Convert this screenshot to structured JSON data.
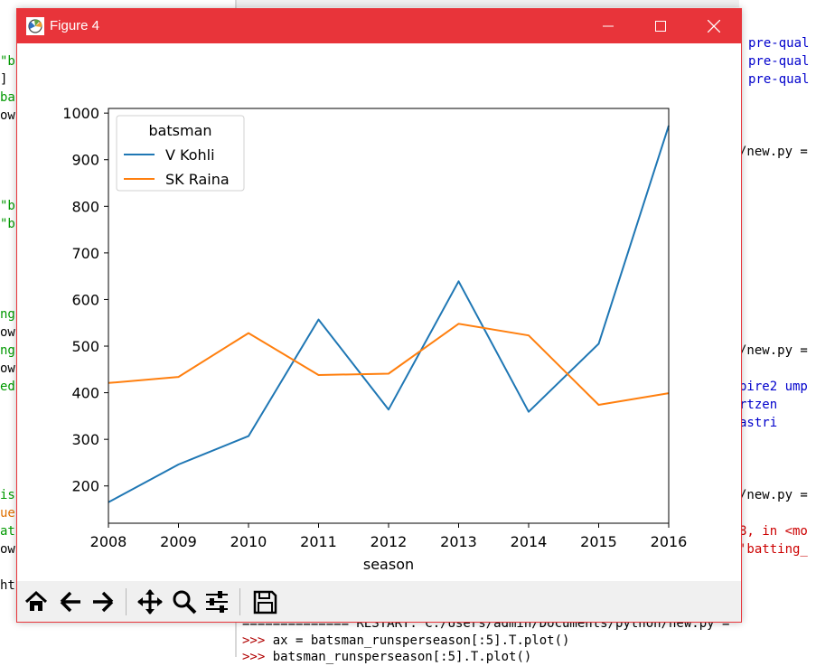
{
  "window": {
    "title": "Figure 4"
  },
  "editor_left": {
    "lines": [
      {
        "text": "\"b",
        "color": "#009900"
      },
      {
        "text": "]",
        "color": "#000000"
      },
      {
        "text": "ba",
        "color": "#009900"
      },
      {
        "text": "ow",
        "color": "#000000"
      },
      {
        "text": "\"b",
        "color": "#009900"
      },
      {
        "text": "\"b",
        "color": "#009900"
      },
      {
        "text": "ng",
        "color": "#009900"
      },
      {
        "text": "ow",
        "color": "#000000"
      },
      {
        "text": "ng",
        "color": "#009900"
      },
      {
        "text": "ow",
        "color": "#000000"
      },
      {
        "text": "ed",
        "color": "#009900"
      },
      {
        "text": "is",
        "color": "#009900"
      },
      {
        "text": "ue",
        "color": "#e07000"
      },
      {
        "text": "at",
        "color": "#009900"
      },
      {
        "text": "ow",
        "color": "#000000"
      },
      {
        "text": "ht",
        "color": "#000000"
      }
    ]
  },
  "shell_right": {
    "lines": [
      {
        "text": "pre-qual",
        "color": "#0000cc"
      },
      {
        "text": "pre-qual",
        "color": "#0000cc"
      },
      {
        "text": "pre-qual",
        "color": "#0000cc"
      },
      {
        "text": "/new.py =",
        "color": "#000000"
      },
      {
        "text": "/new.py =",
        "color": "#000000"
      },
      {
        "text": "pire2 ump",
        "color": "#0000cc"
      },
      {
        "text": "rtzen",
        "color": "#0000cc"
      },
      {
        "text": "astri",
        "color": "#0000cc"
      },
      {
        "text": "/new.py =",
        "color": "#000000"
      },
      {
        "text": "8, in <mo",
        "color": "#cc0000"
      },
      {
        "text": "'batting_",
        "color": "#cc0000"
      }
    ]
  },
  "shell_bottom": {
    "restart_line": "============== RESTART: C:/Users/admin/Documents/python/new.py =",
    "line1_prompt": ">>>",
    "line1_code": "ax = batsman_runsperseason[:5].T.plot()",
    "line2_prompt": ">>>",
    "line2_code": "batsman_runsperseason[:5].T.plot()"
  },
  "toolbar": {
    "home": "home-icon",
    "back": "arrow-left-icon",
    "forward": "arrow-right-icon",
    "pan": "move-icon",
    "zoom": "zoom-icon",
    "configure": "sliders-icon",
    "save": "save-icon"
  },
  "chart_data": {
    "type": "line",
    "title": "",
    "xlabel": "season",
    "ylabel": "",
    "x": [
      2008,
      2009,
      2010,
      2011,
      2012,
      2013,
      2014,
      2015,
      2016
    ],
    "xlim": [
      2008,
      2016
    ],
    "ylim": [
      120,
      1010
    ],
    "yticks": [
      200,
      300,
      400,
      500,
      600,
      700,
      800,
      900,
      1000
    ],
    "legend": {
      "title": "batsman",
      "location": "upper-left"
    },
    "grid": false,
    "series": [
      {
        "name": "V Kohli",
        "color": "#1f77b4",
        "values": [
          165,
          246,
          307,
          557,
          364,
          639,
          359,
          505,
          973
        ]
      },
      {
        "name": "SK Raina",
        "color": "#ff7f0e",
        "values": [
          421,
          434,
          528,
          438,
          441,
          548,
          523,
          374,
          399
        ]
      }
    ]
  }
}
